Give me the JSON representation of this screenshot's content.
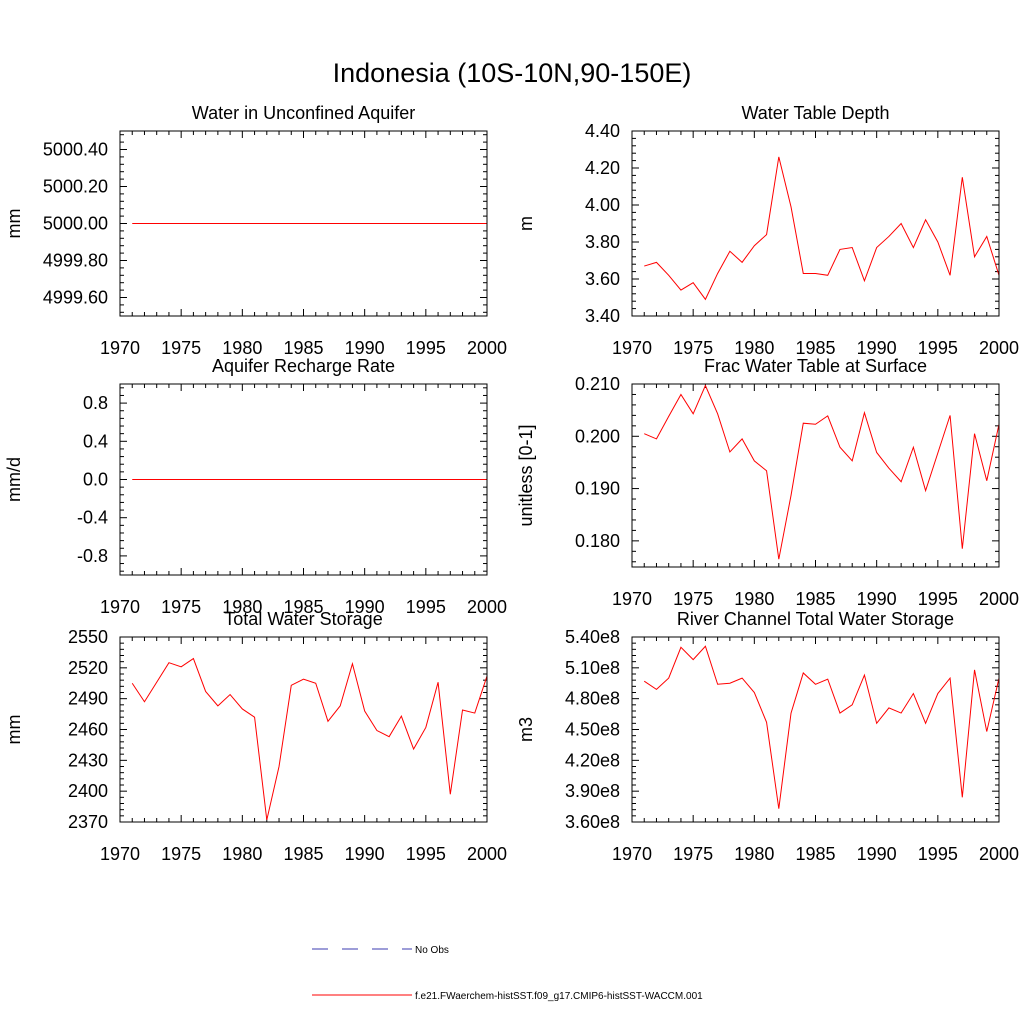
{
  "figure": {
    "title": "Indonesia (10S-10N,90-150E)",
    "legend": [
      {
        "label": "No Obs",
        "style": "dashed",
        "color": "#3b3bb0"
      },
      {
        "label": "f.e21.FWaerchem-histSST.f09_g17.CMIP6-histSST-WACCM.001",
        "style": "solid",
        "color": "#ff0000"
      }
    ]
  },
  "chart_data": [
    {
      "type": "line",
      "title": "Water in Unconfined Aquifer",
      "ylabel": "mm",
      "xlim": [
        1970,
        2000
      ],
      "xticks": [
        "1970",
        "1975",
        "1980",
        "1985",
        "1990",
        "1995",
        "2000"
      ],
      "ylim": [
        4999.5,
        5000.5
      ],
      "yticks": [
        "4999.60",
        "4999.80",
        "5000.00",
        "5000.20",
        "5000.40"
      ],
      "ytick_values": [
        4999.6,
        4999.8,
        5000.0,
        5000.2,
        5000.4
      ],
      "x": [
        1971,
        1972,
        1973,
        1974,
        1975,
        1976,
        1977,
        1978,
        1979,
        1980,
        1981,
        1982,
        1983,
        1984,
        1985,
        1986,
        1987,
        1988,
        1989,
        1990,
        1991,
        1992,
        1993,
        1994,
        1995,
        1996,
        1997,
        1998,
        1999,
        2000
      ],
      "series": [
        {
          "values": [
            5000,
            5000,
            5000,
            5000,
            5000,
            5000,
            5000,
            5000,
            5000,
            5000,
            5000,
            5000,
            5000,
            5000,
            5000,
            5000,
            5000,
            5000,
            5000,
            5000,
            5000,
            5000,
            5000,
            5000,
            5000,
            5000,
            5000,
            5000,
            5000,
            5000
          ],
          "color": "#ff0000"
        }
      ]
    },
    {
      "type": "line",
      "title": "Water Table Depth",
      "ylabel": "m",
      "xlim": [
        1970,
        2000
      ],
      "xticks": [
        "1970",
        "1975",
        "1980",
        "1985",
        "1990",
        "1995",
        "2000"
      ],
      "ylim": [
        3.4,
        4.4
      ],
      "yticks": [
        "3.40",
        "3.60",
        "3.80",
        "4.00",
        "4.20",
        "4.40"
      ],
      "ytick_values": [
        3.4,
        3.6,
        3.8,
        4.0,
        4.2,
        4.4
      ],
      "x": [
        1971,
        1972,
        1973,
        1974,
        1975,
        1976,
        1977,
        1978,
        1979,
        1980,
        1981,
        1982,
        1983,
        1984,
        1985,
        1986,
        1987,
        1988,
        1989,
        1990,
        1991,
        1992,
        1993,
        1994,
        1995,
        1996,
        1997,
        1998,
        1999,
        2000
      ],
      "series": [
        {
          "values": [
            3.67,
            3.69,
            3.62,
            3.54,
            3.58,
            3.49,
            3.63,
            3.75,
            3.69,
            3.78,
            3.84,
            4.26,
            3.99,
            3.63,
            3.63,
            3.62,
            3.76,
            3.77,
            3.59,
            3.77,
            3.83,
            3.9,
            3.77,
            3.92,
            3.8,
            3.62,
            4.15,
            3.72,
            3.83,
            3.62
          ],
          "color": "#ff0000"
        }
      ]
    },
    {
      "type": "line",
      "title": "Aquifer Recharge Rate",
      "ylabel": "mm/d",
      "xlim": [
        1970,
        2000
      ],
      "xticks": [
        "1970",
        "1975",
        "1980",
        "1985",
        "1990",
        "1995",
        "2000"
      ],
      "ylim": [
        -1.0,
        1.0
      ],
      "yticks": [
        "-0.8",
        "-0.4",
        "0.0",
        "0.4",
        "0.8"
      ],
      "ytick_values": [
        -0.8,
        -0.4,
        0.0,
        0.4,
        0.8
      ],
      "x": [
        1971,
        1972,
        1973,
        1974,
        1975,
        1976,
        1977,
        1978,
        1979,
        1980,
        1981,
        1982,
        1983,
        1984,
        1985,
        1986,
        1987,
        1988,
        1989,
        1990,
        1991,
        1992,
        1993,
        1994,
        1995,
        1996,
        1997,
        1998,
        1999,
        2000
      ],
      "series": [
        {
          "values": [
            0,
            0,
            0,
            0,
            0,
            0,
            0,
            0,
            0,
            0,
            0,
            0,
            0,
            0,
            0,
            0,
            0,
            0,
            0,
            0,
            0,
            0,
            0,
            0,
            0,
            0,
            0,
            0,
            0,
            0
          ],
          "color": "#ff0000"
        }
      ]
    },
    {
      "type": "line",
      "title": "Frac Water Table at Surface",
      "ylabel": "unitless [0-1]",
      "xlim": [
        1970,
        2000
      ],
      "xticks": [
        "1970",
        "1975",
        "1980",
        "1985",
        "1990",
        "1995",
        "2000"
      ],
      "ylim": [
        0.175,
        0.21
      ],
      "yticks": [
        "0.180",
        "0.190",
        "0.200",
        "0.210"
      ],
      "ytick_values": [
        0.18,
        0.19,
        0.2,
        0.21
      ],
      "x": [
        1971,
        1972,
        1973,
        1974,
        1975,
        1976,
        1977,
        1978,
        1979,
        1980,
        1981,
        1982,
        1983,
        1984,
        1985,
        1986,
        1987,
        1988,
        1989,
        1990,
        1991,
        1992,
        1993,
        1994,
        1995,
        1996,
        1997,
        1998,
        1999,
        2000
      ],
      "series": [
        {
          "values": [
            0.2005,
            0.1995,
            0.2038,
            0.208,
            0.2043,
            0.2097,
            0.2043,
            0.197,
            0.1995,
            0.1953,
            0.1934,
            0.1765,
            0.1887,
            0.2025,
            0.2023,
            0.2039,
            0.1979,
            0.1953,
            0.2045,
            0.1969,
            0.1939,
            0.1913,
            0.1979,
            0.1896,
            0.1968,
            0.204,
            0.1785,
            0.2005,
            0.1915,
            0.2023
          ],
          "color": "#ff0000"
        }
      ]
    },
    {
      "type": "line",
      "title": "Total Water Storage",
      "ylabel": "mm",
      "xlim": [
        1970,
        2000
      ],
      "xticks": [
        "1970",
        "1975",
        "1980",
        "1985",
        "1990",
        "1995",
        "2000"
      ],
      "ylim": [
        2370,
        2550
      ],
      "yticks": [
        "2370",
        "2400",
        "2430",
        "2460",
        "2490",
        "2520",
        "2550"
      ],
      "ytick_values": [
        2370,
        2400,
        2430,
        2460,
        2490,
        2520,
        2550
      ],
      "x": [
        1971,
        1972,
        1973,
        1974,
        1975,
        1976,
        1977,
        1978,
        1979,
        1980,
        1981,
        1982,
        1983,
        1984,
        1985,
        1986,
        1987,
        1988,
        1989,
        1990,
        1991,
        1992,
        1993,
        1994,
        1995,
        1996,
        1997,
        1998,
        1999,
        2000
      ],
      "series": [
        {
          "values": [
            2505,
            2487,
            2506,
            2525,
            2521,
            2529,
            2497,
            2483,
            2494,
            2480,
            2472,
            2372,
            2424,
            2503,
            2509,
            2505,
            2468,
            2483,
            2524,
            2478,
            2459,
            2453,
            2473,
            2441,
            2462,
            2506,
            2397,
            2479,
            2476,
            2512
          ],
          "color": "#ff0000"
        }
      ]
    },
    {
      "type": "line",
      "title": "River Channel Total Water Storage",
      "ylabel": "m3",
      "xlim": [
        1970,
        2000
      ],
      "xticks": [
        "1970",
        "1975",
        "1980",
        "1985",
        "1990",
        "1995",
        "2000"
      ],
      "ylim": [
        360000000,
        540000000
      ],
      "yticks": [
        "3.60e8",
        "3.90e8",
        "4.20e8",
        "4.50e8",
        "4.80e8",
        "5.10e8",
        "5.40e8"
      ],
      "ytick_values": [
        360000000,
        390000000,
        420000000,
        450000000,
        480000000,
        510000000,
        540000000
      ],
      "x": [
        1971,
        1972,
        1973,
        1974,
        1975,
        1976,
        1977,
        1978,
        1979,
        1980,
        1981,
        1982,
        1983,
        1984,
        1985,
        1986,
        1987,
        1988,
        1989,
        1990,
        1991,
        1992,
        1993,
        1994,
        1995,
        1996,
        1997,
        1998,
        1999,
        2000
      ],
      "series": [
        {
          "values": [
            497000000,
            489000000,
            500000000,
            530000000,
            518000000,
            531000000,
            494000000,
            495000000,
            500000000,
            486000000,
            457000000,
            373000000,
            466000000,
            505000000,
            494000000,
            499000000,
            466000000,
            474000000,
            503000000,
            456000000,
            471000000,
            466000000,
            485000000,
            456000000,
            485000000,
            500000000,
            384000000,
            508000000,
            448000000,
            500000000
          ],
          "color": "#ff0000"
        }
      ]
    }
  ]
}
